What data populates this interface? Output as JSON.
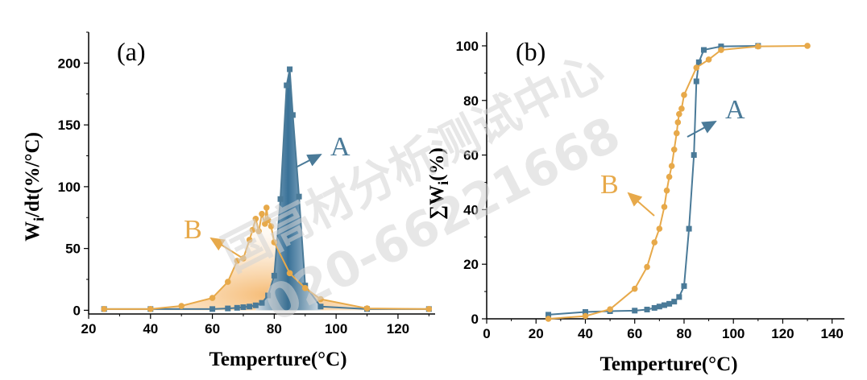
{
  "colors": {
    "A": "#4a7a98",
    "B": "#e7a94a",
    "watermark": "#cfcfcf"
  },
  "watermark": {
    "line1": "国高材分析测试中心",
    "line2": "020-66221668"
  },
  "chart_data": [
    {
      "type": "line",
      "panel_label": "(a)",
      "xlabel": "Temperture(°C)",
      "ylabel_main": "W",
      "ylabel_sub": "i",
      "ylabel_rest": "/dt(%/°C)",
      "xlim": [
        20,
        132
      ],
      "ylim": [
        -3,
        225
      ],
      "xticks": [
        20,
        40,
        60,
        80,
        100,
        120
      ],
      "yticks": [
        0,
        50,
        100,
        150,
        200
      ],
      "series": [
        {
          "name": "A",
          "marker": "square",
          "color": "#4a7a98",
          "x": [
            25,
            40,
            60,
            65,
            68,
            70,
            72,
            74,
            76,
            78,
            80,
            82,
            84,
            85,
            86,
            88,
            90,
            95,
            110,
            130
          ],
          "y": [
            1,
            1,
            1,
            1.5,
            2,
            2.5,
            3,
            4,
            6,
            12,
            28,
            90,
            182,
            195,
            158,
            92,
            20,
            3,
            1,
            1
          ]
        },
        {
          "name": "B",
          "marker": "circle",
          "color": "#e7a94a",
          "x": [
            25,
            40,
            50,
            60,
            65,
            68,
            70,
            72,
            73,
            74,
            75,
            76,
            77,
            77.5,
            78,
            79,
            80,
            85,
            90,
            95,
            110,
            130
          ],
          "y": [
            1,
            1,
            3.5,
            10,
            23,
            40,
            42,
            57,
            65,
            74,
            64,
            78,
            70,
            83,
            73,
            68,
            55,
            30,
            18,
            9,
            1.5,
            1
          ]
        }
      ],
      "annotations": [
        {
          "text": "A",
          "color": "#4a7a98"
        },
        {
          "text": "B",
          "color": "#e7a94a"
        }
      ]
    },
    {
      "type": "line",
      "panel_label": "(b)",
      "xlabel": "Temperture(°C)",
      "ylabel_main": "∑W",
      "ylabel_sub": "i",
      "ylabel_rest": "(%)",
      "xlim": [
        0,
        145
      ],
      "ylim": [
        0,
        105
      ],
      "xticks": [
        0,
        20,
        40,
        60,
        80,
        100,
        120,
        140
      ],
      "yticks": [
        0,
        20,
        40,
        60,
        80,
        100
      ],
      "series": [
        {
          "name": "A",
          "marker": "square",
          "color": "#4a7a98",
          "x": [
            25,
            40,
            50,
            60,
            65,
            68,
            70,
            72,
            74,
            76,
            78,
            80,
            82,
            84,
            85,
            86,
            88,
            95,
            110
          ],
          "y": [
            1.5,
            2.5,
            2.8,
            3,
            3.4,
            4,
            4.5,
            5,
            5.5,
            6.3,
            8,
            12,
            33,
            60,
            87,
            94,
            98.5,
            99.8,
            100
          ]
        },
        {
          "name": "B",
          "marker": "circle",
          "color": "#e7a94a",
          "x": [
            25,
            40,
            50,
            60,
            65,
            68,
            70,
            72,
            73,
            74,
            75,
            76,
            77,
            77.5,
            78,
            79,
            80,
            85,
            90,
            95,
            110,
            130
          ],
          "y": [
            0,
            1,
            3.5,
            11,
            19,
            28,
            33,
            41,
            47,
            52,
            56,
            62,
            68,
            72,
            75,
            77,
            82,
            92,
            95,
            98.5,
            99.8,
            100
          ]
        }
      ],
      "annotations": [
        {
          "text": "A",
          "color": "#4a7a98"
        },
        {
          "text": "B",
          "color": "#e7a94a"
        }
      ]
    }
  ]
}
